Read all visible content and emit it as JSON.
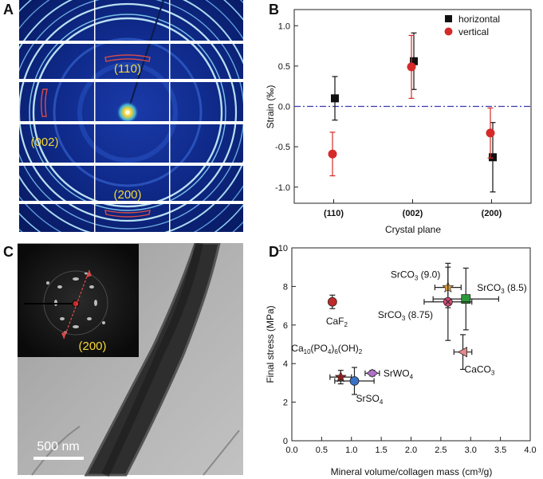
{
  "panel_labels": {
    "a": "A",
    "b": "B",
    "c": "C",
    "d": "D"
  },
  "panel_a": {
    "ring_labels": [
      "(110)",
      "(002)",
      "(200)"
    ],
    "label_color": "#f4d835",
    "marker_color": "#d84a4a",
    "background_color": "#0a1e6e"
  },
  "panel_c": {
    "inset_label": "(200)",
    "scale_bar_label": "500 nm"
  },
  "chart_data": [
    {
      "type": "scatter",
      "title": "",
      "xlabel": "Crystal plane",
      "ylabel": "Strain (‰)",
      "categories": [
        "(110)",
        "(002)",
        "(200)"
      ],
      "ylim": [
        -1.2,
        1.2
      ],
      "yticks": [
        "1.0",
        "0.5",
        "0.0",
        "-0.5",
        "-1.0"
      ],
      "ytick_values": [
        1.0,
        0.5,
        0.0,
        -0.5,
        -1.0
      ],
      "reference_line": 0.0,
      "legend_position": "top-right",
      "series": [
        {
          "name": "horizontal",
          "marker": "square",
          "color": "#111111",
          "values": [
            0.1,
            0.56,
            -0.63
          ],
          "errors": [
            0.27,
            0.35,
            0.43
          ]
        },
        {
          "name": "vertical",
          "marker": "circle",
          "color": "#d42a2a",
          "values": [
            -0.59,
            0.49,
            -0.33
          ],
          "errors": [
            0.27,
            0.39,
            0.31
          ]
        }
      ]
    },
    {
      "type": "scatter",
      "title": "",
      "xlabel": "Mineral volume/collagen mass (cm³/g)",
      "ylabel": "Final stress (MPa)",
      "xlim": [
        0.0,
        4.0
      ],
      "ylim": [
        0,
        10
      ],
      "xticks": [
        "0.0",
        "0.5",
        "1.0",
        "1.5",
        "2.0",
        "2.5",
        "3.0",
        "3.5",
        "4.0"
      ],
      "xtick_values": [
        0.0,
        0.5,
        1.0,
        1.5,
        2.0,
        2.5,
        3.0,
        3.5,
        4.0
      ],
      "yticks": [
        "0",
        "2",
        "4",
        "6",
        "8",
        "10"
      ],
      "ytick_values": [
        0,
        2,
        4,
        6,
        8,
        10
      ],
      "points": [
        {
          "label": "CaF2",
          "x": 0.68,
          "y": 7.2,
          "xerr": 0.0,
          "yerr": 0.35,
          "color": "#c02a2a",
          "marker": "circle",
          "label_dx": -8,
          "label_dy": 28
        },
        {
          "label": "Ca10(PO4)6(OH)2",
          "x": 0.82,
          "y": 3.3,
          "xerr": 0.18,
          "yerr": 0.35,
          "color": "#8a2020",
          "marker": "star",
          "label_dx": -62,
          "label_dy": -32
        },
        {
          "label": "SrSO4",
          "x": 1.05,
          "y": 3.1,
          "xerr": 0.33,
          "yerr": 0.7,
          "color": "#3a72c8",
          "marker": "circle",
          "label_dx": 2,
          "label_dy": 26
        },
        {
          "label": "SrWO4",
          "x": 1.35,
          "y": 3.5,
          "xerr": 0.12,
          "yerr": 0.15,
          "color": "#b070c8",
          "marker": "diamond",
          "label_dx": 14,
          "label_dy": 4
        },
        {
          "label": "SrCO3 (9.0)",
          "x": 2.62,
          "y": 7.95,
          "xerr": 0.22,
          "yerr": 1.05,
          "color": "#e0a040",
          "marker": "star",
          "label_dx": -72,
          "label_dy": -12
        },
        {
          "label": "SrCO3 (8.5)",
          "x": 2.92,
          "y": 7.35,
          "xerr": 0.55,
          "yerr": 1.6,
          "color": "#2a9a3a",
          "marker": "square",
          "label_dx": 14,
          "label_dy": -10
        },
        {
          "label": "SrCO3 (8.75)",
          "x": 2.62,
          "y": 7.2,
          "xerr": 0.4,
          "yerr": 2.0,
          "color": "#d84a78",
          "marker": "xcircle",
          "label_dx": -88,
          "label_dy": 20
        },
        {
          "label": "CaCO3",
          "x": 2.87,
          "y": 4.6,
          "xerr": 0.15,
          "yerr": 0.9,
          "color": "#e08a8a",
          "marker": "triangle-left",
          "label_dx": 2,
          "label_dy": 26
        }
      ]
    }
  ]
}
